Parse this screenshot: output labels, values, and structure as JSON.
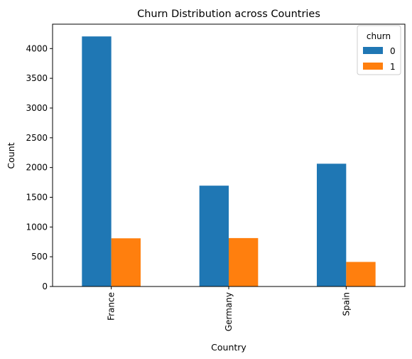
{
  "chart_data": {
    "type": "bar",
    "title": "Churn Distribution across Countries",
    "xlabel": "Country",
    "ylabel": "Count",
    "categories": [
      "France",
      "Germany",
      "Spain"
    ],
    "series": [
      {
        "name": "0",
        "values": [
          4204,
          1695,
          2064
        ],
        "color": "#1f77b4"
      },
      {
        "name": "1",
        "values": [
          810,
          814,
          413
        ],
        "color": "#ff7f0e"
      }
    ],
    "ylim": [
      0,
      4410
    ],
    "yticks": [
      0,
      500,
      1000,
      1500,
      2000,
      2500,
      3000,
      3500,
      4000
    ],
    "legend": {
      "title": "churn",
      "position": "top-right"
    },
    "grid": false
  }
}
